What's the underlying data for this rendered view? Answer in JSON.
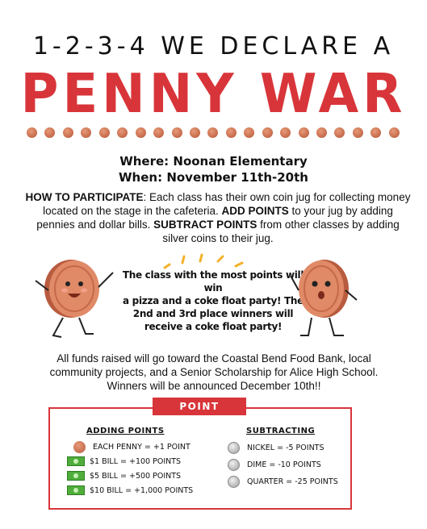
{
  "header": {
    "subtitle": "1-2-3-4 WE DECLARE A",
    "title": "PENNY WAR"
  },
  "details": {
    "where": "Where: Noonan Elementary",
    "when": "When: November 11th-20th"
  },
  "how_to": {
    "label": "HOW TO PARTICIPATE",
    "text1": ": Each class has their own coin jug for collecting money located on the stage in the cafeteria. ",
    "add_label": "ADD POINTS",
    "text2": " to your jug by adding pennies and dollar bills. ",
    "subtract_label": "SUBTRACT POINTS",
    "text3": " from other classes by adding silver coins to their jug."
  },
  "prize": {
    "line1": "The class with the most points will win",
    "line2": "a pizza and a coke float party! The",
    "line3": "2nd and 3rd place winners will",
    "line4": "receive a coke float party!"
  },
  "funds": {
    "line1": "All funds raised will go toward the Coastal Bend Food Bank, local",
    "line2": "community projects, and a Senior Scholarship for Alice High School.",
    "line3": "Winners will be announced December 10th!!"
  },
  "point_system": {
    "heading": "POINT SYSTEM",
    "adding_heading": "ADDING POINTS",
    "subtracting_heading": "SUBTRACTING",
    "adding": [
      {
        "icon": "penny-icon",
        "label": "EACH PENNY = +1 POINT"
      },
      {
        "icon": "bill-icon",
        "label": "$1 BILL = +100 POINTS"
      },
      {
        "icon": "bill-icon",
        "label": "$5 BILL = +500 POINTS"
      },
      {
        "icon": "bill-icon",
        "label": "$10 BILL = +1,000 POINTS"
      }
    ],
    "subtracting": [
      {
        "icon": "nickel-icon",
        "label": "NICKEL =  -5 POINTS"
      },
      {
        "icon": "dime-icon",
        "label": "DIME =  -10 POINTS"
      },
      {
        "icon": "quarter-icon",
        "label": "QUARTER = -25 POINTS"
      }
    ]
  },
  "colors": {
    "accent_red": "#d8353a",
    "copper": "#c5694a",
    "spark_yellow": "#f3b22c"
  }
}
